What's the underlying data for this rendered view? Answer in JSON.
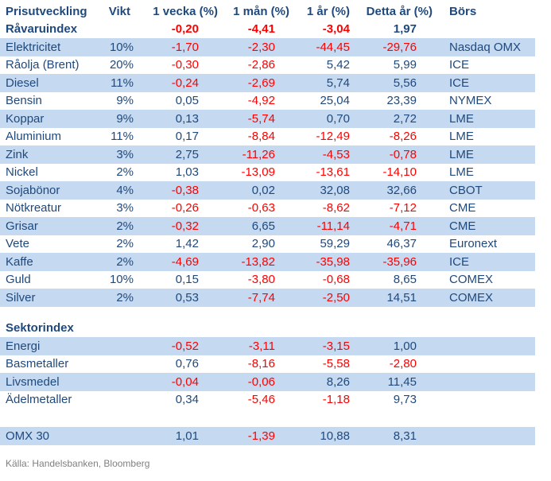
{
  "source_note": "Källa: Handelsbanken, Bloomberg",
  "colors": {
    "text_navy": "#1F497D",
    "negative_red": "#FF0000",
    "row_highlight_blue": "#C5D9F1",
    "source_gray": "#808080",
    "background": "#ffffff"
  },
  "chart_data": {
    "type": "table",
    "title": "Prisutveckling",
    "columns": [
      "Prisutveckling",
      "Vikt",
      "1 vecka (%)",
      "1 mån (%)",
      "1 år (%)",
      "Detta år (%)",
      "Börs"
    ],
    "value_format": "swedish decimal comma, negatives shown in red",
    "rows": [
      {
        "label": "Råvaruindex",
        "vikt": "",
        "values": [
          "-0,20",
          "-4,41",
          "-3,04",
          "1,97"
        ],
        "bors": "",
        "bold": true,
        "highlight": false,
        "spacer_before": 0
      },
      {
        "label": "Elektricitet",
        "vikt": "10%",
        "values": [
          "-1,70",
          "-2,30",
          "-44,45",
          "-29,76"
        ],
        "bors": "Nasdaq OMX",
        "bold": false,
        "highlight": true,
        "spacer_before": 0
      },
      {
        "label": "Råolja (Brent)",
        "vikt": "20%",
        "values": [
          "-0,30",
          "-2,86",
          "5,42",
          "5,99"
        ],
        "bors": "ICE",
        "bold": false,
        "highlight": false,
        "spacer_before": 0
      },
      {
        "label": "Diesel",
        "vikt": "11%",
        "values": [
          "-0,24",
          "-2,69",
          "5,74",
          "5,56"
        ],
        "bors": "ICE",
        "bold": false,
        "highlight": true,
        "spacer_before": 0
      },
      {
        "label": "Bensin",
        "vikt": "9%",
        "values": [
          "0,05",
          "-4,92",
          "25,04",
          "23,39"
        ],
        "bors": "NYMEX",
        "bold": false,
        "highlight": false,
        "spacer_before": 0
      },
      {
        "label": "Koppar",
        "vikt": "9%",
        "values": [
          "0,13",
          "-5,74",
          "0,70",
          "2,72"
        ],
        "bors": "LME",
        "bold": false,
        "highlight": true,
        "spacer_before": 0
      },
      {
        "label": "Aluminium",
        "vikt": "11%",
        "values": [
          "0,17",
          "-8,84",
          "-12,49",
          "-8,26"
        ],
        "bors": "LME",
        "bold": false,
        "highlight": false,
        "spacer_before": 0
      },
      {
        "label": "Zink",
        "vikt": "3%",
        "values": [
          "2,75",
          "-11,26",
          "-4,53",
          "-0,78"
        ],
        "bors": "LME",
        "bold": false,
        "highlight": true,
        "spacer_before": 0
      },
      {
        "label": "Nickel",
        "vikt": "2%",
        "values": [
          "1,03",
          "-13,09",
          "-13,61",
          "-14,10"
        ],
        "bors": "LME",
        "bold": false,
        "highlight": false,
        "spacer_before": 0
      },
      {
        "label": "Sojabönor",
        "vikt": "4%",
        "values": [
          "-0,38",
          "0,02",
          "32,08",
          "32,66"
        ],
        "bors": "CBOT",
        "bold": false,
        "highlight": true,
        "spacer_before": 0
      },
      {
        "label": "Nötkreatur",
        "vikt": "3%",
        "values": [
          "-0,26",
          "-0,63",
          "-8,62",
          "-7,12"
        ],
        "bors": "CME",
        "bold": false,
        "highlight": false,
        "spacer_before": 0
      },
      {
        "label": "Grisar",
        "vikt": "2%",
        "values": [
          "-0,32",
          "6,65",
          "-11,14",
          "-4,71"
        ],
        "bors": "CME",
        "bold": false,
        "highlight": true,
        "spacer_before": 0
      },
      {
        "label": "Vete",
        "vikt": "2%",
        "values": [
          "1,42",
          "2,90",
          "59,29",
          "46,37"
        ],
        "bors": "Euronext",
        "bold": false,
        "highlight": false,
        "spacer_before": 0
      },
      {
        "label": "Kaffe",
        "vikt": "2%",
        "values": [
          "-4,69",
          "-13,82",
          "-35,98",
          "-35,96"
        ],
        "bors": "ICE",
        "bold": false,
        "highlight": true,
        "spacer_before": 0
      },
      {
        "label": "Guld",
        "vikt": "10%",
        "values": [
          "0,15",
          "-3,80",
          "-0,68",
          "8,65"
        ],
        "bors": "COMEX",
        "bold": false,
        "highlight": false,
        "spacer_before": 0
      },
      {
        "label": "Silver",
        "vikt": "2%",
        "values": [
          "0,53",
          "-7,74",
          "-2,50",
          "14,51"
        ],
        "bors": "COMEX",
        "bold": false,
        "highlight": true,
        "spacer_before": 0
      },
      {
        "label": "Sektorindex",
        "vikt": "",
        "values": [
          "",
          "",
          "",
          ""
        ],
        "bors": "",
        "bold": true,
        "highlight": false,
        "spacer_before": 16
      },
      {
        "label": "Energi",
        "vikt": "",
        "values": [
          "-0,52",
          "-3,11",
          "-3,15",
          "1,00"
        ],
        "bors": "",
        "bold": false,
        "highlight": true,
        "spacer_before": 0
      },
      {
        "label": "Basmetaller",
        "vikt": "",
        "values": [
          "0,76",
          "-8,16",
          "-5,58",
          "-2,80"
        ],
        "bors": "",
        "bold": false,
        "highlight": false,
        "spacer_before": 0
      },
      {
        "label": "Livsmedel",
        "vikt": "",
        "values": [
          "-0,04",
          "-0,06",
          "8,26",
          "11,45"
        ],
        "bors": "",
        "bold": false,
        "highlight": true,
        "spacer_before": 0
      },
      {
        "label": "Ädelmetaller",
        "vikt": "",
        "values": [
          "0,34",
          "-5,46",
          "-1,18",
          "9,73"
        ],
        "bors": "",
        "bold": false,
        "highlight": false,
        "spacer_before": 0
      },
      {
        "label": "OMX 30",
        "vikt": "",
        "values": [
          "1,01",
          "-1,39",
          "10,88",
          "8,31"
        ],
        "bors": "",
        "bold": false,
        "highlight": true,
        "spacer_before": 23
      }
    ]
  }
}
